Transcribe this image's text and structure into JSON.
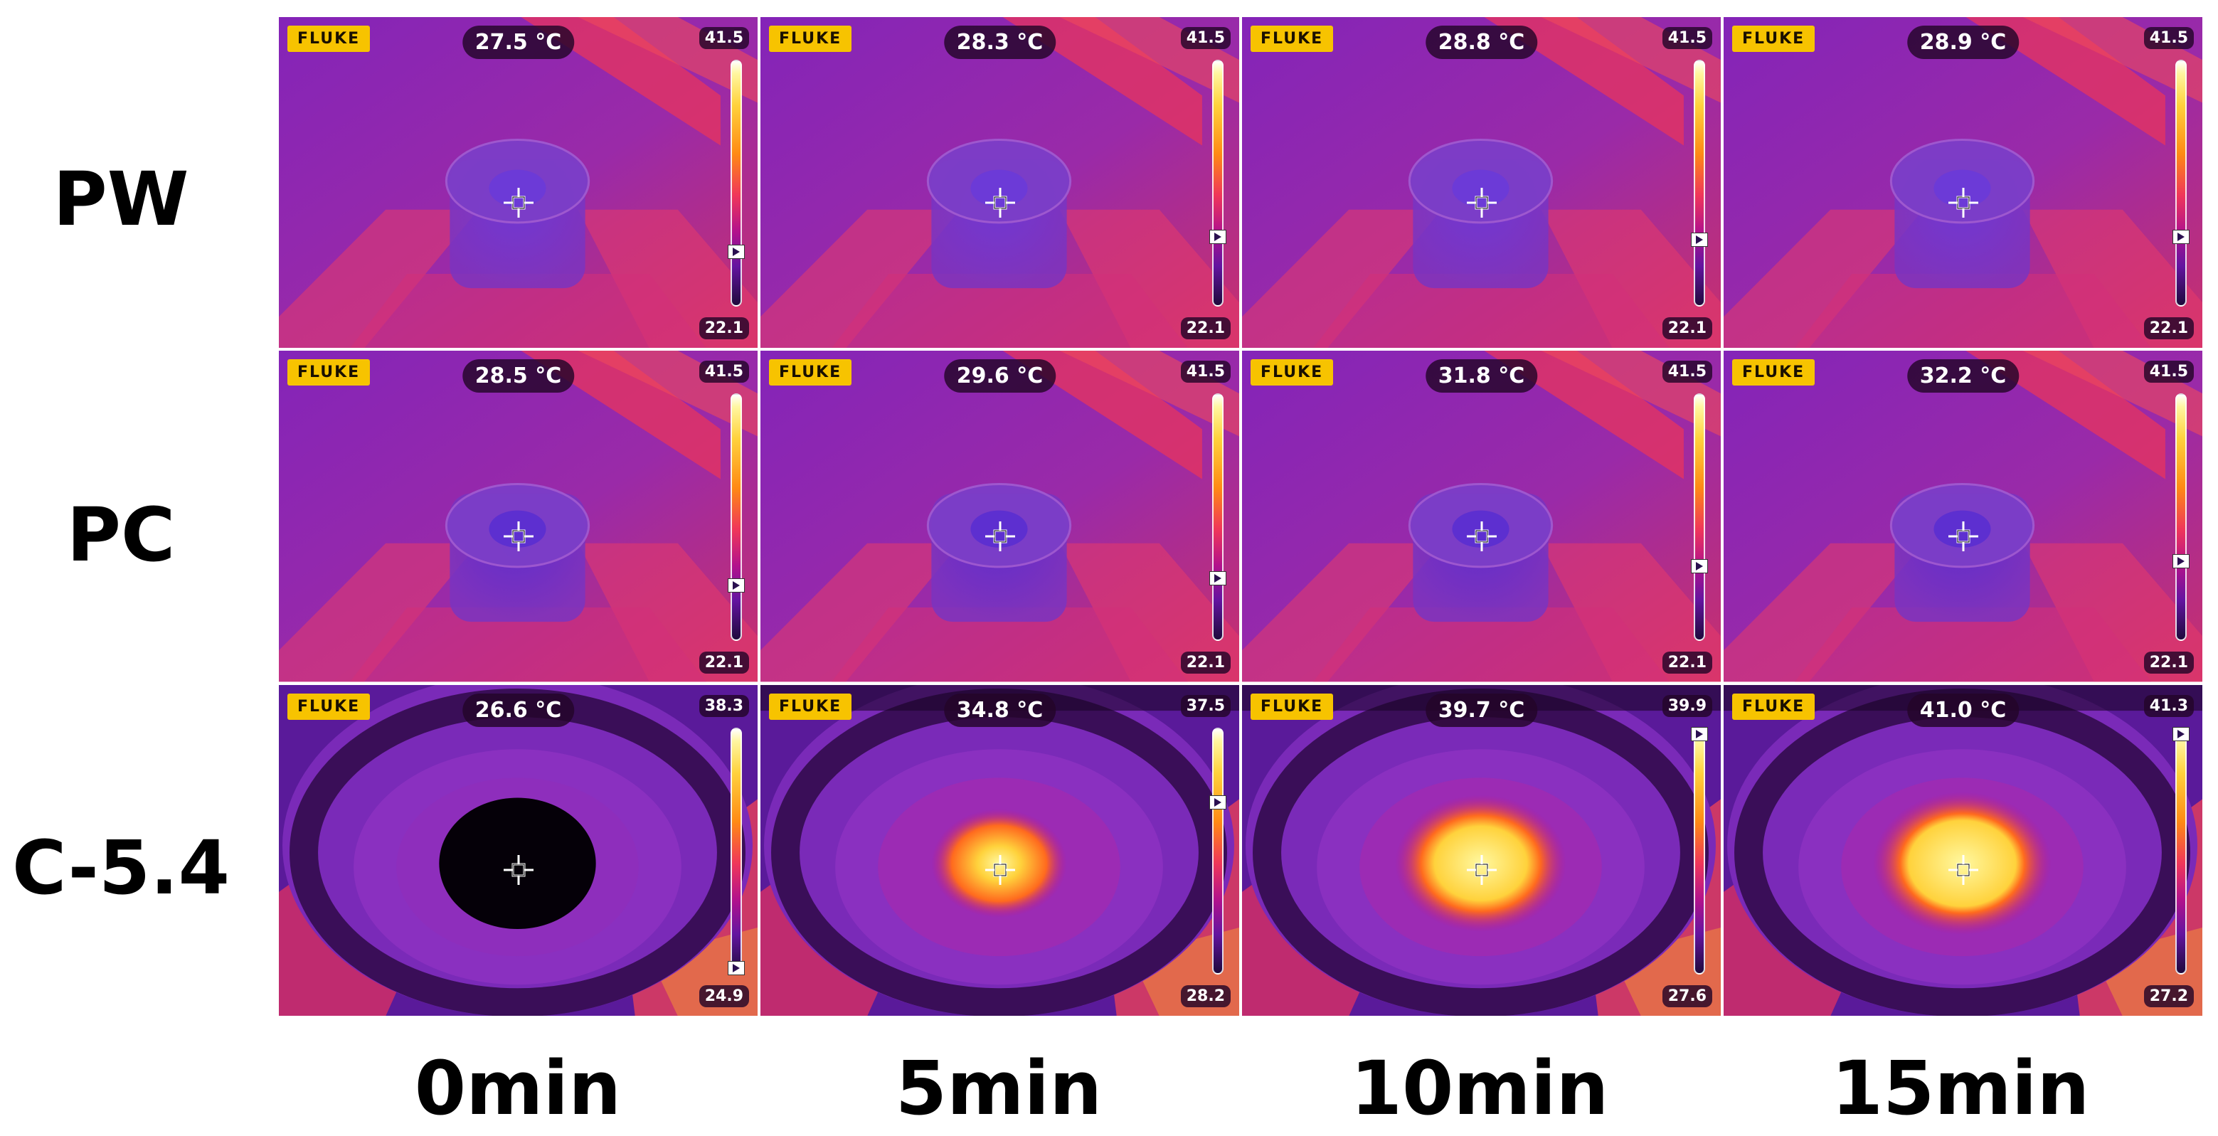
{
  "row_labels": [
    "PW",
    "PC",
    "C-5.4"
  ],
  "col_labels": [
    "0min",
    "5min",
    "10min",
    "15min"
  ],
  "brand": "FLUKE",
  "cells": [
    [
      {
        "temp": "27.5 °C",
        "max": "41.5",
        "min": "22.1",
        "marker_level": 0.22
      },
      {
        "temp": "28.3 °C",
        "max": "41.5",
        "min": "22.1",
        "marker_level": 0.28
      },
      {
        "temp": "28.8 °C",
        "max": "41.5",
        "min": "22.1",
        "marker_level": 0.27
      },
      {
        "temp": "28.9 °C",
        "max": "41.5",
        "min": "22.1",
        "marker_level": 0.28
      }
    ],
    [
      {
        "temp": "28.5 °C",
        "max": "41.5",
        "min": "22.1",
        "marker_level": 0.22
      },
      {
        "temp": "29.6 °C",
        "max": "41.5",
        "min": "22.1",
        "marker_level": 0.25
      },
      {
        "temp": "31.8 °C",
        "max": "41.5",
        "min": "22.1",
        "marker_level": 0.3
      },
      {
        "temp": "32.2 °C",
        "max": "41.5",
        "min": "22.1",
        "marker_level": 0.32
      }
    ],
    [
      {
        "temp": "26.6 °C",
        "max": "38.3",
        "min": "24.9",
        "marker_level": 0.02
      },
      {
        "temp": "34.8 °C",
        "max": "37.5",
        "min": "28.2",
        "marker_level": 0.7
      },
      {
        "temp": "39.7 °C",
        "max": "39.9",
        "min": "27.6",
        "marker_level": 0.98
      },
      {
        "temp": "41.0 °C",
        "max": "41.3",
        "min": "27.2",
        "marker_level": 0.98
      }
    ]
  ],
  "colors": {
    "background_purple": "#8a2bbf",
    "hot_pink": "#f0365a",
    "hot_core": "#ffe850",
    "brand_yellow": "#f7c300"
  }
}
